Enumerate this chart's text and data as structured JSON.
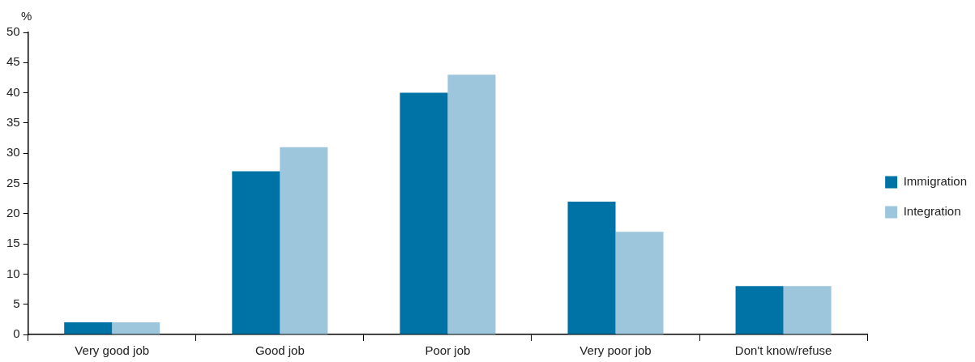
{
  "chart_data": {
    "type": "bar",
    "ylabel": "%",
    "categories": [
      "Very good job",
      "Good job",
      "Poor job",
      "Very poor job",
      "Don't know/refuse"
    ],
    "series": [
      {
        "name": "Immigration",
        "color": "#0073a6",
        "values": [
          2,
          27,
          40,
          22,
          8
        ]
      },
      {
        "name": "Integration",
        "color": "#9dc6dc",
        "values": [
          2,
          31,
          43,
          17,
          8
        ]
      }
    ],
    "ylim": [
      0,
      50
    ],
    "yticks": [
      0,
      5,
      10,
      15,
      20,
      25,
      30,
      35,
      40,
      45,
      50
    ],
    "legend": "right"
  }
}
